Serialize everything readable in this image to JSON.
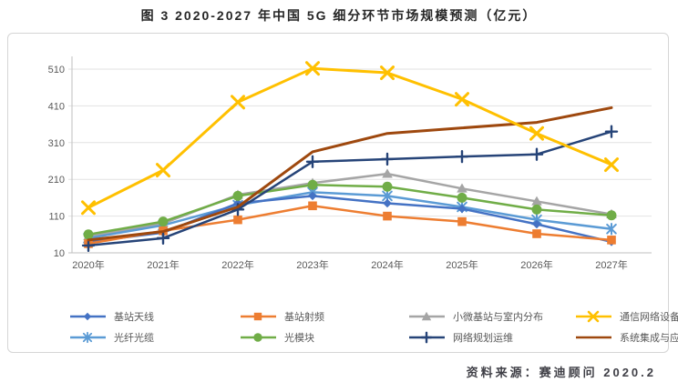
{
  "chart_data": {
    "type": "line",
    "title": "图 3 2020-2027 年中国 5G 细分环节市场规模预测（亿元）",
    "categories": [
      "2020年",
      "2021年",
      "2022年",
      "2023年",
      "2024年",
      "2025年",
      "2026年",
      "2027年"
    ],
    "y_ticks": [
      10,
      110,
      210,
      310,
      410,
      510
    ],
    "ylim": [
      10,
      560
    ],
    "grid": "horizontal",
    "legend_position": "bottom",
    "axis_color": "#bfbfbf",
    "grid_color": "#e2e2e2",
    "tick_label_color": "#595959",
    "series": [
      {
        "name": "基站天线",
        "color": "#4472C4",
        "marker": "diamond-marker",
        "values": [
          40,
          65,
          145,
          165,
          145,
          130,
          88,
          40
        ]
      },
      {
        "name": "基站射频",
        "color": "#ED7D31",
        "marker": "square-marker",
        "values": [
          35,
          70,
          100,
          138,
          110,
          95,
          62,
          45
        ]
      },
      {
        "name": "小微基站与室内分布",
        "color": "#A5A5A5",
        "marker": "triangle-marker",
        "values": [
          55,
          90,
          168,
          200,
          225,
          185,
          150,
          115
        ]
      },
      {
        "name": "通信网络设备",
        "color": "#FFC000",
        "marker": "x-marker",
        "values": [
          133,
          235,
          420,
          512,
          500,
          428,
          335,
          250
        ]
      },
      {
        "name": "光纤光缆",
        "color": "#5B9BD5",
        "marker": "asterisk-marker",
        "values": [
          50,
          85,
          140,
          175,
          165,
          135,
          100,
          75
        ]
      },
      {
        "name": "光模块",
        "color": "#70AD47",
        "marker": "circle-marker",
        "values": [
          60,
          95,
          165,
          195,
          190,
          160,
          128,
          112
        ]
      },
      {
        "name": "网络规划运维",
        "color": "#264478",
        "marker": "plus-marker",
        "values": [
          30,
          50,
          128,
          258,
          265,
          272,
          278,
          340
        ]
      },
      {
        "name": "系统集成与应用服务",
        "color": "#9E480E",
        "marker": "none",
        "values": [
          45,
          68,
          135,
          285,
          335,
          350,
          365,
          405
        ]
      }
    ]
  },
  "source": {
    "text": "资料来源：赛迪顾问  2020.2"
  }
}
